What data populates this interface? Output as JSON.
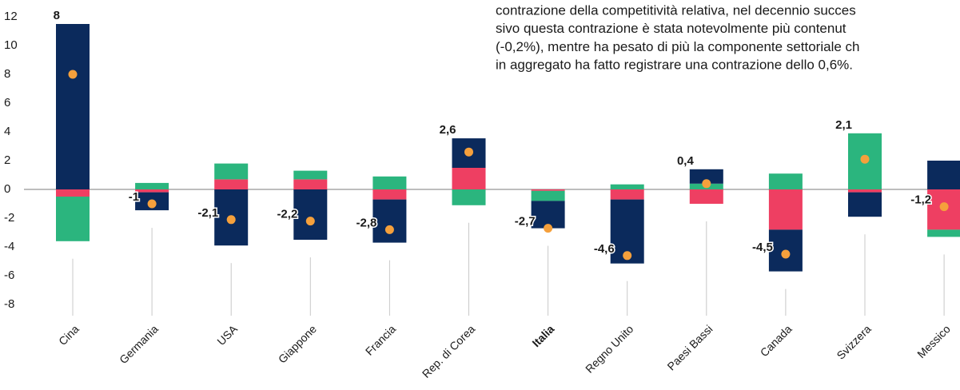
{
  "chart_data": {
    "type": "stacked_bar",
    "categories": [
      "Cina",
      "Germania",
      "USA",
      "Giappone",
      "Francia",
      "Rep. di Corea",
      "Italia",
      "Regno Unito",
      "Paesi Bassi",
      "Canada",
      "Svizzera",
      "Messico"
    ],
    "highlight": 6,
    "series": [
      {
        "color": "#ee3f62",
        "values": [
          -0.5,
          -0.2,
          0.7,
          0.7,
          -0.7,
          1.5,
          -0.1,
          -0.7,
          -1.0,
          -2.8,
          -0.2,
          -2.8
        ]
      },
      {
        "color": "#2bb57e",
        "values": [
          -3.1,
          0.45,
          1.1,
          0.6,
          0.9,
          -1.1,
          -0.7,
          0.35,
          0.4,
          1.1,
          3.9,
          -0.5
        ]
      },
      {
        "color": "#0b2a5c",
        "values": [
          11.5,
          -1.25,
          -3.9,
          -3.5,
          -3.0,
          2.05,
          -1.9,
          -4.45,
          1.0,
          -2.9,
          -1.7,
          2.0
        ]
      }
    ],
    "totals": {
      "color": "#f5a03c",
      "values": [
        8,
        -1,
        -2.1,
        -2.2,
        -2.8,
        2.6,
        -2.7,
        -4.6,
        0.4,
        -4.5,
        2.1,
        -1.2
      ],
      "value_labels": [
        "8",
        "-1",
        "-2,1",
        "-2,2",
        "-2,8",
        "2,6",
        "-2,7",
        "-4,6",
        "0,4",
        "-4,5",
        "2,1",
        "-1,2"
      ]
    },
    "ylim": [
      -8,
      12
    ],
    "yticks": [
      -8,
      -6,
      -4,
      -2,
      0,
      2,
      4,
      6,
      8,
      10,
      12
    ],
    "annotation": [
      "contrazione della competitività relativa, nel decennio succes",
      "sivo questa contrazione è stata notevolmente più contenut",
      "(-0,2%), mentre ha pesato di più la componente settoriale ch",
      "in aggregato ha fatto registrare una contrazione dello 0,6%."
    ]
  }
}
